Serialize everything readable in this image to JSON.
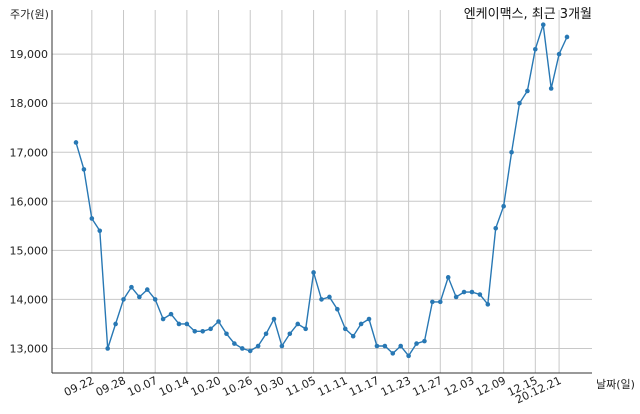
{
  "chart_data": {
    "type": "line",
    "title": "엔케이맥스, 최근 3개월",
    "xlabel": "날짜(일)",
    "ylabel": "주가(원)",
    "ylim": [
      12500,
      19900
    ],
    "yticks": [
      13000,
      14000,
      15000,
      16000,
      17000,
      18000,
      19000
    ],
    "ytick_labels": [
      "13,000",
      "14,000",
      "15,000",
      "16,000",
      "17,000",
      "18,000",
      "19,000"
    ],
    "xticks": [
      {
        "i": 2,
        "label": "09.22"
      },
      {
        "i": 6,
        "label": "09.28"
      },
      {
        "i": 10,
        "label": "10.07"
      },
      {
        "i": 14,
        "label": "10.14"
      },
      {
        "i": 18,
        "label": "10.20"
      },
      {
        "i": 22,
        "label": "10.26"
      },
      {
        "i": 26,
        "label": "10.30"
      },
      {
        "i": 30,
        "label": "11.05"
      },
      {
        "i": 34,
        "label": "11.11"
      },
      {
        "i": 38,
        "label": "11.17"
      },
      {
        "i": 42,
        "label": "11.23"
      },
      {
        "i": 46,
        "label": "11.27"
      },
      {
        "i": 50,
        "label": "12.03"
      },
      {
        "i": 54,
        "label": "12.09"
      },
      {
        "i": 58,
        "label": "12.15"
      },
      {
        "i": 61,
        "label": "20.12.21"
      }
    ],
    "grid": true,
    "color": "#2878b4",
    "values": [
      17200,
      16650,
      15650,
      15400,
      13000,
      13500,
      14000,
      14250,
      14050,
      14200,
      14000,
      13600,
      13700,
      13500,
      13500,
      13350,
      13350,
      13400,
      13550,
      13300,
      13100,
      13000,
      12950,
      13050,
      13300,
      13600,
      13050,
      13300,
      13500,
      13400,
      14550,
      14000,
      14050,
      13800,
      13400,
      13250,
      13500,
      13600,
      13050,
      13050,
      12900,
      13050,
      12850,
      13100,
      13150,
      13950,
      13950,
      14450,
      14050,
      14150,
      14150,
      14100,
      13900,
      15450,
      15900,
      17000,
      18000,
      18250,
      19100,
      19600,
      18300,
      19000,
      19350
    ]
  }
}
